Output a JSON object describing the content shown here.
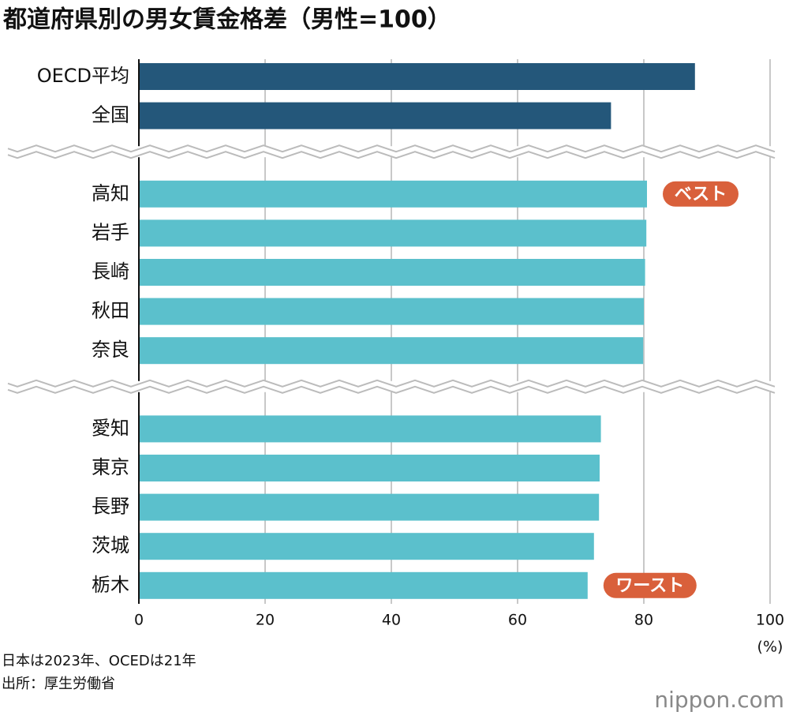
{
  "chart_data": {
    "type": "bar",
    "title": "都道府県別の男女賃金格差（男性=100）",
    "groups": [
      {
        "categories": [
          "OECD平均",
          "全国"
        ],
        "values": [
          88.1,
          74.8
        ],
        "color": "#24577a"
      },
      {
        "categories": [
          "高知",
          "岩手",
          "長崎",
          "秋田",
          "奈良"
        ],
        "values": [
          80.5,
          80.4,
          80.2,
          80.0,
          79.9
        ],
        "color": "#5bc0cc"
      },
      {
        "categories": [
          "愛知",
          "東京",
          "長野",
          "茨城",
          "栃木"
        ],
        "values": [
          73.2,
          73.0,
          72.9,
          72.1,
          71.1
        ],
        "color": "#5bc0cc"
      }
    ],
    "annotations": [
      {
        "text": "ベスト",
        "category": "高知",
        "color": "#d9603b"
      },
      {
        "text": "ワースト",
        "category": "栃木",
        "color": "#d9603b"
      }
    ],
    "xlim": [
      0,
      100
    ],
    "xticks": [
      0,
      20,
      40,
      60,
      80,
      100
    ],
    "x_unit": "(%)",
    "grid": true,
    "notes": [
      "日本は2023年、OCEDは21年",
      "出所：厚生労働省"
    ],
    "logo": "nippon.com"
  }
}
